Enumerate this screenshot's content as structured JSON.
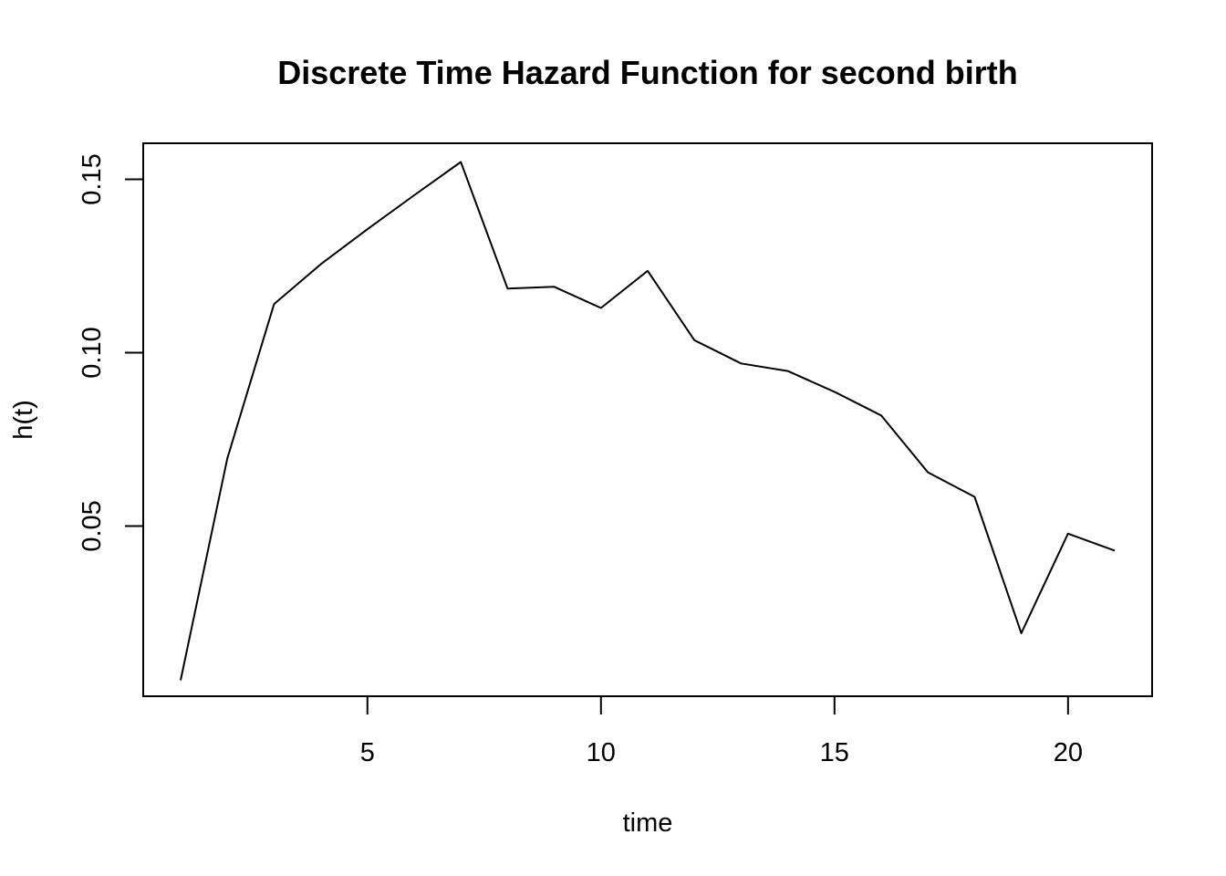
{
  "chart_data": {
    "type": "line",
    "title": "Discrete Time Hazard Function for second birth",
    "xlabel": "time",
    "ylabel": "h(t)",
    "x": [
      1,
      2,
      3,
      4,
      5,
      6,
      7,
      8,
      9,
      10,
      11,
      12,
      13,
      14,
      15,
      16,
      17,
      18,
      19,
      20,
      21
    ],
    "y": [
      0.0055,
      0.0695,
      0.114,
      0.1255,
      0.1356,
      0.1454,
      0.155,
      0.1185,
      0.119,
      0.1129,
      0.1236,
      0.1036,
      0.0969,
      0.0947,
      0.0887,
      0.0819,
      0.0655,
      0.0584,
      0.0191,
      0.0478,
      0.0429
    ],
    "xticks": [
      5,
      10,
      15,
      20
    ],
    "xtick_labels": [
      "5",
      "10",
      "15",
      "20"
    ],
    "yticks": [
      0.05,
      0.1,
      0.15
    ],
    "ytick_labels": [
      "0.05",
      "0.10",
      "0.15"
    ],
    "xlim": [
      0.2,
      21.8
    ],
    "ylim": [
      0.0009,
      0.1604
    ],
    "grid": false,
    "line_color": "#000000"
  }
}
